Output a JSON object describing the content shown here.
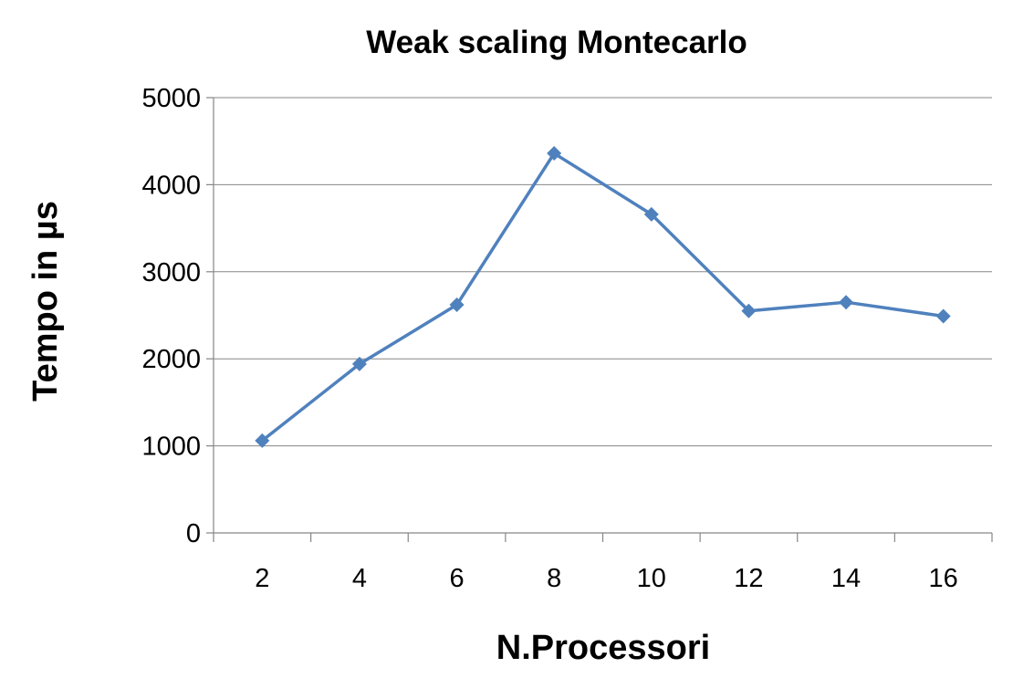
{
  "chart_data": {
    "type": "line",
    "title": "Weak scaling Montecarlo",
    "xlabel": "N.Processori",
    "ylabel": "Tempo in µs",
    "categories": [
      "2",
      "4",
      "6",
      "8",
      "10",
      "12",
      "14",
      "16"
    ],
    "series": [
      {
        "values": [
          1060,
          1940,
          2620,
          4360,
          3660,
          2550,
          2650,
          2490
        ],
        "color": "#4F81BD",
        "marker": "diamond"
      }
    ],
    "ylim": [
      0,
      5000
    ],
    "yticks": [
      "0",
      "1000",
      "2000",
      "3000",
      "4000",
      "5000"
    ],
    "grid": true,
    "legend": "none"
  }
}
